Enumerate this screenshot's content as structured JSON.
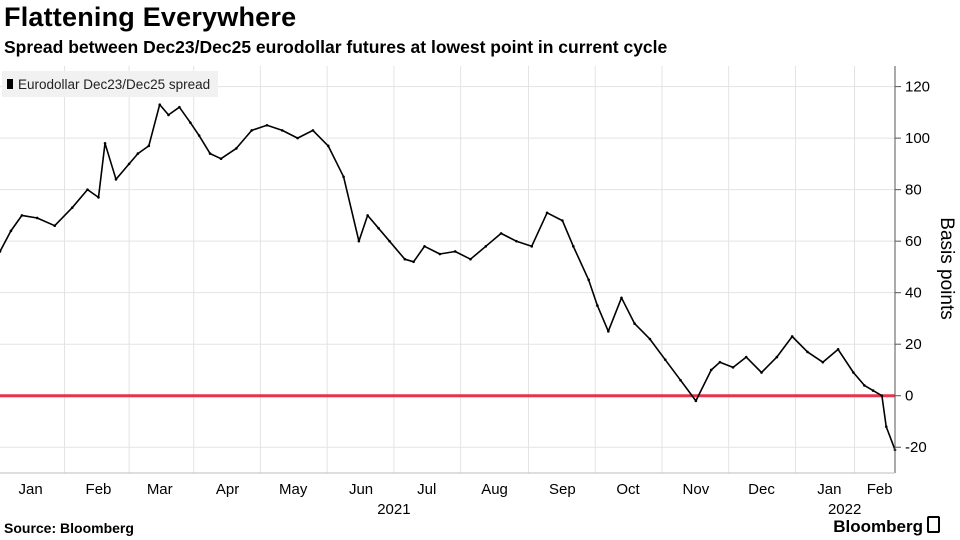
{
  "header": {
    "title": "Flattening Everywhere",
    "subtitle": "Spread between Dec23/Dec25 eurodollar futures at lowest point in current cycle"
  },
  "legend": {
    "label": "Eurodollar Dec23/Dec25 spread"
  },
  "footer": {
    "source": "Source: Bloomberg",
    "brand": "Bloomberg"
  },
  "colors": {
    "series": "#000000",
    "zero_line": "#e8344a",
    "grid": "#e3e3e3",
    "axis": "#555555"
  },
  "chart_data": {
    "type": "line",
    "title": "Flattening Everywhere",
    "subtitle": "Spread between Dec23/Dec25 eurodollar futures at lowest point in current cycle",
    "ylabel": "Basis points",
    "ylim": [
      -30,
      128
    ],
    "yticks": [
      -20,
      0,
      20,
      40,
      60,
      80,
      100,
      120
    ],
    "ytick_labels": [
      "-20",
      "0",
      "20",
      "40",
      "60",
      "80",
      "100",
      "120"
    ],
    "xlim": [
      "2021-01-01",
      "2022-02-14"
    ],
    "xticks": [
      {
        "date": "2021-01-15",
        "label": "Jan"
      },
      {
        "date": "2021-02-15",
        "label": "Feb"
      },
      {
        "date": "2021-03-15",
        "label": "Mar"
      },
      {
        "date": "2021-04-15",
        "label": "Apr"
      },
      {
        "date": "2021-05-15",
        "label": "May"
      },
      {
        "date": "2021-06-15",
        "label": "Jun"
      },
      {
        "date": "2021-07-15",
        "label": "Jul"
      },
      {
        "date": "2021-08-15",
        "label": "Aug"
      },
      {
        "date": "2021-09-15",
        "label": "Sep"
      },
      {
        "date": "2021-10-15",
        "label": "Oct"
      },
      {
        "date": "2021-11-15",
        "label": "Nov"
      },
      {
        "date": "2021-12-15",
        "label": "Dec"
      },
      {
        "date": "2022-01-15",
        "label": "Jan"
      },
      {
        "date": "2022-02-07",
        "label": "Feb"
      }
    ],
    "year_labels": [
      {
        "date": "2021-06-30",
        "label": "2021"
      },
      {
        "date": "2022-01-22",
        "label": "2022"
      }
    ],
    "reference_lines": [
      {
        "y": 0
      }
    ],
    "grid": true,
    "legend_position": "top-left",
    "series": [
      {
        "name": "Eurodollar Dec23/Dec25 spread",
        "x": [
          "2021-01-01",
          "2021-01-06",
          "2021-01-11",
          "2021-01-18",
          "2021-01-26",
          "2021-02-03",
          "2021-02-10",
          "2021-02-15",
          "2021-02-18",
          "2021-02-23",
          "2021-03-01",
          "2021-03-05",
          "2021-03-10",
          "2021-03-15",
          "2021-03-19",
          "2021-03-24",
          "2021-03-29",
          "2021-04-02",
          "2021-04-07",
          "2021-04-12",
          "2021-04-19",
          "2021-04-26",
          "2021-05-03",
          "2021-05-10",
          "2021-05-17",
          "2021-05-24",
          "2021-05-31",
          "2021-06-07",
          "2021-06-14",
          "2021-06-18",
          "2021-06-23",
          "2021-06-28",
          "2021-07-05",
          "2021-07-09",
          "2021-07-14",
          "2021-07-21",
          "2021-07-28",
          "2021-08-04",
          "2021-08-11",
          "2021-08-18",
          "2021-08-25",
          "2021-09-01",
          "2021-09-08",
          "2021-09-15",
          "2021-09-20",
          "2021-09-27",
          "2021-10-01",
          "2021-10-06",
          "2021-10-12",
          "2021-10-18",
          "2021-10-25",
          "2021-11-01",
          "2021-11-08",
          "2021-11-15",
          "2021-11-22",
          "2021-11-26",
          "2021-12-02",
          "2021-12-08",
          "2021-12-15",
          "2021-12-22",
          "2021-12-29",
          "2022-01-05",
          "2022-01-12",
          "2022-01-19",
          "2022-01-26",
          "2022-01-31",
          "2022-02-04",
          "2022-02-08",
          "2022-02-10",
          "2022-02-14"
        ],
        "y": [
          56,
          64,
          70,
          69,
          66,
          73,
          80,
          77,
          98,
          84,
          90,
          94,
          97,
          113,
          109,
          112,
          106,
          101,
          94,
          92,
          96,
          103,
          105,
          103,
          100,
          103,
          97,
          85,
          60,
          70,
          65,
          60,
          53,
          52,
          58,
          55,
          56,
          53,
          58,
          63,
          60,
          58,
          71,
          68,
          58,
          45,
          35,
          25,
          38,
          28,
          22,
          14,
          6,
          -2,
          10,
          13,
          11,
          15,
          9,
          15,
          23,
          17,
          13,
          18,
          9,
          4,
          2,
          0,
          -12,
          -21
        ]
      }
    ]
  }
}
